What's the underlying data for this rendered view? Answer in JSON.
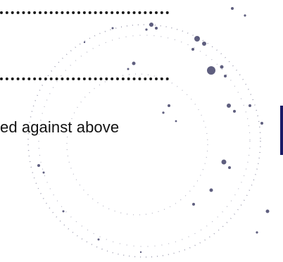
{
  "document": {
    "text_fragment": "ed against above"
  },
  "stamp": {
    "type": "faded-circular-seal",
    "ink_color": "#2a2a55"
  }
}
